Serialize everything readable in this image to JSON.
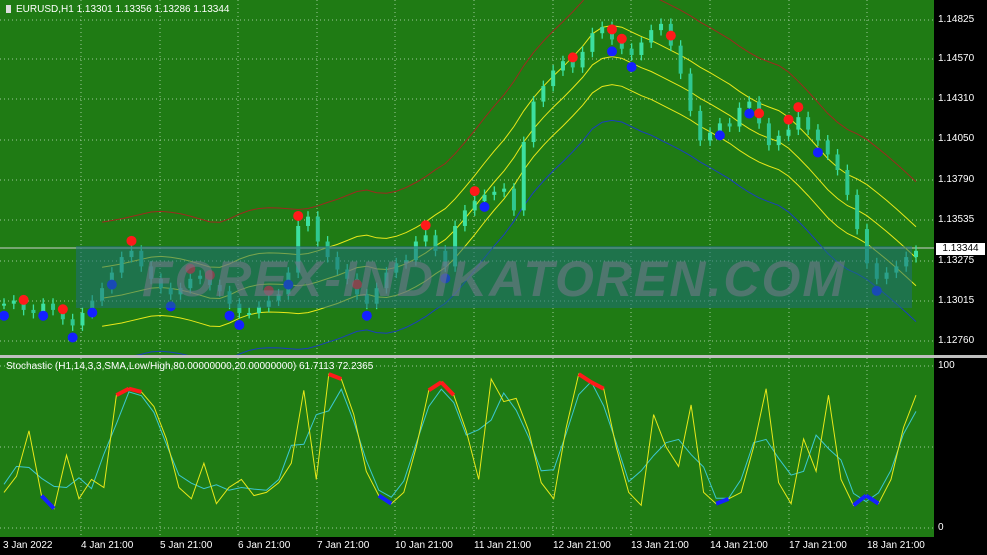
{
  "chart_info": {
    "symbol_line": "EURUSD,H1  1.13301 1.13356 1.13286 1.13344",
    "bid_label": "1.13344",
    "stoch_label": "Stochastic (H1,14,3,3,SMA,Low/High,80.00000000,20.00000000) 61.7113 72.2365",
    "watermark": "FOREX-INDIKATOREN.COM"
  },
  "price_axis": [
    "1.14825",
    "1.14570",
    "1.14310",
    "1.14050",
    "1.13790",
    "1.13535",
    "1.13275",
    "1.13015",
    "1.12760"
  ],
  "stoch_axis": [
    "100",
    "0"
  ],
  "time_axis": [
    "3 Jan 2022",
    "4 Jan 21:00",
    "5 Jan 21:00",
    "6 Jan 21:00",
    "7 Jan 21:00",
    "10 Jan 21:00",
    "11 Jan 21:00",
    "12 Jan 21:00",
    "13 Jan 21:00",
    "14 Jan 21:00",
    "17 Jan 21:00",
    "18 Jan 21:00"
  ],
  "colors": {
    "background": "#1f7b14",
    "grid": "#9ec89a",
    "candle": "#3ce0a0",
    "band_upper": "#9c2a1f",
    "band_lower": "#1a3fbf",
    "channel": "#e8e81a",
    "sell_dot": "#ff1a1a",
    "buy_dot": "#1420ff",
    "stoch_main": "#e8e81a",
    "stoch_signal": "#3cc8d0",
    "overbought": "#ff1a1a",
    "oversold": "#1420ff"
  },
  "chart_data": {
    "type": "line",
    "price_series": [
      1.13,
      1.1302,
      1.1296,
      1.1294,
      1.13,
      1.1296,
      1.129,
      1.1286,
      1.1294,
      1.1302,
      1.131,
      1.132,
      1.133,
      1.1334,
      1.1324,
      1.1316,
      1.131,
      1.1306,
      1.131,
      1.1316,
      1.1318,
      1.1312,
      1.1308,
      1.13,
      1.1294,
      1.1294,
      1.1298,
      1.1302,
      1.1306,
      1.132,
      1.135,
      1.1356,
      1.134,
      1.133,
      1.1322,
      1.1316,
      1.1306,
      1.13,
      1.131,
      1.132,
      1.1326,
      1.1328,
      1.134,
      1.1344,
      1.1334,
      1.1324,
      1.135,
      1.136,
      1.1366,
      1.137,
      1.1372,
      1.1374,
      1.136,
      1.1404,
      1.143,
      1.144,
      1.145,
      1.1456,
      1.1452,
      1.1462,
      1.1474,
      1.1478,
      1.147,
      1.1464,
      1.146,
      1.1468,
      1.1476,
      1.148,
      1.1466,
      1.1448,
      1.1424,
      1.1405,
      1.141,
      1.1416,
      1.1414,
      1.1426,
      1.143,
      1.1416,
      1.1402,
      1.1408,
      1.1412,
      1.142,
      1.1412,
      1.1405,
      1.1396,
      1.1386,
      1.137,
      1.1348,
      1.1326,
      1.1316,
      1.132,
      1.1324,
      1.133,
      1.1334
    ],
    "stoch_series": [
      22,
      32,
      60,
      20,
      12,
      45,
      18,
      30,
      25,
      82,
      86,
      84,
      75,
      55,
      25,
      18,
      40,
      15,
      25,
      30,
      20,
      22,
      28,
      40,
      85,
      30,
      95,
      92,
      70,
      35,
      20,
      15,
      22,
      50,
      85,
      90,
      82,
      60,
      30,
      92,
      78,
      80,
      60,
      28,
      18,
      62,
      95,
      90,
      86,
      50,
      22,
      14,
      70,
      50,
      38,
      76,
      22,
      15,
      18,
      22,
      50,
      86,
      28,
      15,
      55,
      35,
      82,
      30,
      14,
      20,
      15,
      30,
      62,
      82
    ]
  }
}
